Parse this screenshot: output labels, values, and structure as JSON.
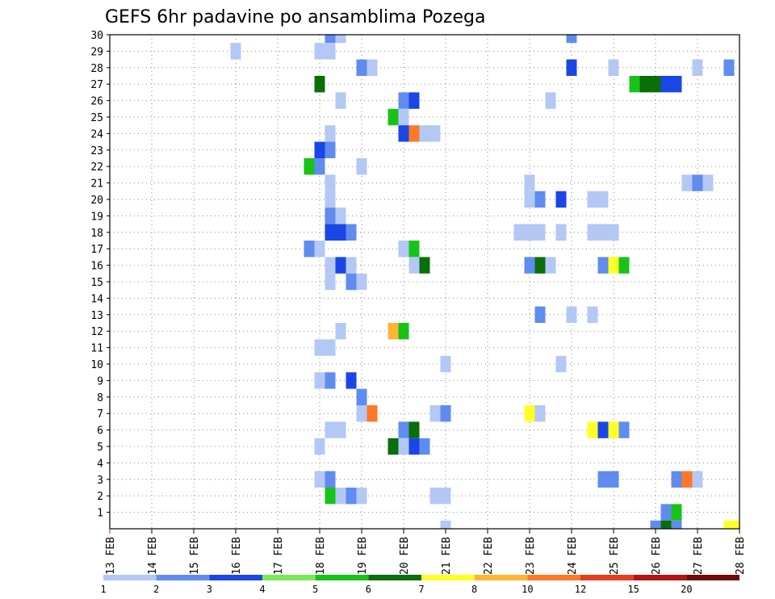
{
  "chart_data": {
    "type": "heatmap",
    "title": "GEFS 6hr padavine po ansamblima Pozega",
    "xlabel": "",
    "ylabel": "",
    "x_ticks": [
      "13 FEB",
      "14 FEB",
      "15 FEB",
      "16 FEB",
      "17 FEB",
      "18 FEB",
      "19 FEB",
      "20 FEB",
      "21 FEB",
      "22 FEB",
      "23 FEB",
      "24 FEB",
      "25 FEB",
      "26 FEB",
      "27 FEB",
      "28 FEB"
    ],
    "y_ticks": [
      1,
      2,
      3,
      4,
      5,
      6,
      7,
      8,
      9,
      10,
      11,
      12,
      13,
      14,
      15,
      16,
      17,
      18,
      19,
      20,
      21,
      22,
      23,
      24,
      25,
      26,
      27,
      28,
      29,
      30
    ],
    "x_range_days": [
      0,
      15
    ],
    "y_range": [
      0,
      30
    ],
    "grid": true,
    "colorbar": {
      "labels": [
        "1",
        "2",
        "3",
        "4",
        "5",
        "6",
        "7",
        "8",
        "10",
        "12",
        "15",
        "20"
      ],
      "colors": [
        "#b4c8f5",
        "#5f8cee",
        "#1a46e6",
        "#7be858",
        "#18c318",
        "#0a6e0a",
        "#ffff28",
        "#ffb432",
        "#ff7828",
        "#e63c1e",
        "#b41414",
        "#6e0a0a"
      ]
    },
    "cells_note": "day = days after 13 FEB 00z (6h steps), member = ensemble row 0..30, level = colorbar class 0..11",
    "cells": [
      {
        "day": 5.25,
        "member": 30,
        "level": 1
      },
      {
        "day": 5.5,
        "member": 30,
        "level": 0
      },
      {
        "day": 11.0,
        "member": 30,
        "level": 1
      },
      {
        "day": 3.0,
        "member": 29,
        "level": 0
      },
      {
        "day": 5.0,
        "member": 29,
        "level": 0
      },
      {
        "day": 5.25,
        "member": 29,
        "level": 0
      },
      {
        "day": 6.0,
        "member": 28,
        "level": 1
      },
      {
        "day": 6.25,
        "member": 28,
        "level": 0
      },
      {
        "day": 11.0,
        "member": 28,
        "level": 2
      },
      {
        "day": 12.0,
        "member": 28,
        "level": 0
      },
      {
        "day": 14.0,
        "member": 28,
        "level": 0
      },
      {
        "day": 14.75,
        "member": 28,
        "level": 1
      },
      {
        "day": 5.0,
        "member": 27,
        "level": 5
      },
      {
        "day": 12.5,
        "member": 27,
        "level": 4
      },
      {
        "day": 12.75,
        "member": 27,
        "level": 5
      },
      {
        "day": 13.0,
        "member": 27,
        "level": 5
      },
      {
        "day": 13.25,
        "member": 27,
        "level": 2
      },
      {
        "day": 13.5,
        "member": 27,
        "level": 2
      },
      {
        "day": 5.5,
        "member": 26,
        "level": 0
      },
      {
        "day": 7.0,
        "member": 26,
        "level": 1
      },
      {
        "day": 7.25,
        "member": 26,
        "level": 2
      },
      {
        "day": 10.5,
        "member": 26,
        "level": 0
      },
      {
        "day": 6.75,
        "member": 25,
        "level": 4
      },
      {
        "day": 7.0,
        "member": 25,
        "level": 0
      },
      {
        "day": 5.25,
        "member": 24,
        "level": 0
      },
      {
        "day": 7.0,
        "member": 24,
        "level": 2
      },
      {
        "day": 7.25,
        "member": 24,
        "level": 8
      },
      {
        "day": 7.5,
        "member": 24,
        "level": 0
      },
      {
        "day": 7.75,
        "member": 24,
        "level": 0
      },
      {
        "day": 5.0,
        "member": 23,
        "level": 2
      },
      {
        "day": 5.25,
        "member": 23,
        "level": 1
      },
      {
        "day": 4.75,
        "member": 22,
        "level": 4
      },
      {
        "day": 5.0,
        "member": 22,
        "level": 1
      },
      {
        "day": 6.0,
        "member": 22,
        "level": 0
      },
      {
        "day": 5.25,
        "member": 21,
        "level": 0
      },
      {
        "day": 10.0,
        "member": 21,
        "level": 0
      },
      {
        "day": 13.75,
        "member": 21,
        "level": 0
      },
      {
        "day": 14.0,
        "member": 21,
        "level": 1
      },
      {
        "day": 14.25,
        "member": 21,
        "level": 0
      },
      {
        "day": 5.25,
        "member": 20,
        "level": 0
      },
      {
        "day": 10.0,
        "member": 20,
        "level": 0
      },
      {
        "day": 10.25,
        "member": 20,
        "level": 1
      },
      {
        "day": 10.75,
        "member": 20,
        "level": 2
      },
      {
        "day": 11.5,
        "member": 20,
        "level": 0
      },
      {
        "day": 11.75,
        "member": 20,
        "level": 0
      },
      {
        "day": 5.25,
        "member": 19,
        "level": 1
      },
      {
        "day": 5.5,
        "member": 19,
        "level": 0
      },
      {
        "day": 5.25,
        "member": 18,
        "level": 2
      },
      {
        "day": 5.5,
        "member": 18,
        "level": 2
      },
      {
        "day": 5.75,
        "member": 18,
        "level": 1
      },
      {
        "day": 9.75,
        "member": 18,
        "level": 0
      },
      {
        "day": 10.0,
        "member": 18,
        "level": 0
      },
      {
        "day": 10.25,
        "member": 18,
        "level": 0
      },
      {
        "day": 10.75,
        "member": 18,
        "level": 0
      },
      {
        "day": 11.5,
        "member": 18,
        "level": 0
      },
      {
        "day": 11.75,
        "member": 18,
        "level": 0
      },
      {
        "day": 12.0,
        "member": 18,
        "level": 0
      },
      {
        "day": 4.75,
        "member": 17,
        "level": 1
      },
      {
        "day": 5.0,
        "member": 17,
        "level": 0
      },
      {
        "day": 7.0,
        "member": 17,
        "level": 0
      },
      {
        "day": 7.25,
        "member": 17,
        "level": 4
      },
      {
        "day": 5.25,
        "member": 16,
        "level": 0
      },
      {
        "day": 5.5,
        "member": 16,
        "level": 2
      },
      {
        "day": 5.75,
        "member": 16,
        "level": 0
      },
      {
        "day": 7.25,
        "member": 16,
        "level": 0
      },
      {
        "day": 7.5,
        "member": 16,
        "level": 5
      },
      {
        "day": 10.0,
        "member": 16,
        "level": 1
      },
      {
        "day": 10.25,
        "member": 16,
        "level": 5
      },
      {
        "day": 10.5,
        "member": 16,
        "level": 0
      },
      {
        "day": 11.75,
        "member": 16,
        "level": 1
      },
      {
        "day": 12.0,
        "member": 16,
        "level": 6
      },
      {
        "day": 12.25,
        "member": 16,
        "level": 4
      },
      {
        "day": 5.25,
        "member": 15,
        "level": 0
      },
      {
        "day": 5.75,
        "member": 15,
        "level": 1
      },
      {
        "day": 6.0,
        "member": 15,
        "level": 0
      },
      {
        "day": 10.25,
        "member": 13,
        "level": 1
      },
      {
        "day": 11.0,
        "member": 13,
        "level": 0
      },
      {
        "day": 11.5,
        "member": 13,
        "level": 0
      },
      {
        "day": 5.5,
        "member": 12,
        "level": 0
      },
      {
        "day": 6.75,
        "member": 12,
        "level": 7
      },
      {
        "day": 7.0,
        "member": 12,
        "level": 4
      },
      {
        "day": 5.0,
        "member": 11,
        "level": 0
      },
      {
        "day": 5.25,
        "member": 11,
        "level": 0
      },
      {
        "day": 8.0,
        "member": 10,
        "level": 0
      },
      {
        "day": 10.75,
        "member": 10,
        "level": 0
      },
      {
        "day": 5.0,
        "member": 9,
        "level": 0
      },
      {
        "day": 5.25,
        "member": 9,
        "level": 1
      },
      {
        "day": 5.75,
        "member": 9,
        "level": 2
      },
      {
        "day": 6.0,
        "member": 8,
        "level": 1
      },
      {
        "day": 6.0,
        "member": 7,
        "level": 0
      },
      {
        "day": 6.25,
        "member": 7,
        "level": 8
      },
      {
        "day": 7.75,
        "member": 7,
        "level": 0
      },
      {
        "day": 8.0,
        "member": 7,
        "level": 1
      },
      {
        "day": 10.0,
        "member": 7,
        "level": 6
      },
      {
        "day": 10.25,
        "member": 7,
        "level": 0
      },
      {
        "day": 5.25,
        "member": 6,
        "level": 0
      },
      {
        "day": 5.5,
        "member": 6,
        "level": 0
      },
      {
        "day": 7.0,
        "member": 6,
        "level": 1
      },
      {
        "day": 7.25,
        "member": 6,
        "level": 5
      },
      {
        "day": 11.5,
        "member": 6,
        "level": 6
      },
      {
        "day": 11.75,
        "member": 6,
        "level": 2
      },
      {
        "day": 12.0,
        "member": 6,
        "level": 6
      },
      {
        "day": 12.25,
        "member": 6,
        "level": 1
      },
      {
        "day": 5.0,
        "member": 5,
        "level": 0
      },
      {
        "day": 6.75,
        "member": 5,
        "level": 5
      },
      {
        "day": 7.0,
        "member": 5,
        "level": 0
      },
      {
        "day": 7.25,
        "member": 5,
        "level": 2
      },
      {
        "day": 7.5,
        "member": 5,
        "level": 1
      },
      {
        "day": 5.0,
        "member": 3,
        "level": 0
      },
      {
        "day": 5.25,
        "member": 3,
        "level": 1
      },
      {
        "day": 11.75,
        "member": 3,
        "level": 1
      },
      {
        "day": 12.0,
        "member": 3,
        "level": 1
      },
      {
        "day": 13.5,
        "member": 3,
        "level": 1
      },
      {
        "day": 13.75,
        "member": 3,
        "level": 8
      },
      {
        "day": 14.0,
        "member": 3,
        "level": 0
      },
      {
        "day": 5.25,
        "member": 2,
        "level": 4
      },
      {
        "day": 5.5,
        "member": 2,
        "level": 0
      },
      {
        "day": 5.75,
        "member": 2,
        "level": 1
      },
      {
        "day": 6.0,
        "member": 2,
        "level": 0
      },
      {
        "day": 7.75,
        "member": 2,
        "level": 0
      },
      {
        "day": 8.0,
        "member": 2,
        "level": 0
      },
      {
        "day": 13.25,
        "member": 1,
        "level": 1
      },
      {
        "day": 13.5,
        "member": 1,
        "level": 4
      },
      {
        "day": 8.0,
        "member": 0,
        "level": 0
      },
      {
        "day": 13.0,
        "member": 0,
        "level": 1
      },
      {
        "day": 13.25,
        "member": 0,
        "level": 5
      },
      {
        "day": 13.5,
        "member": 0,
        "level": 1
      },
      {
        "day": 14.75,
        "member": 0,
        "level": 6
      },
      {
        "day": 15.0,
        "member": 0,
        "level": 6
      }
    ]
  }
}
